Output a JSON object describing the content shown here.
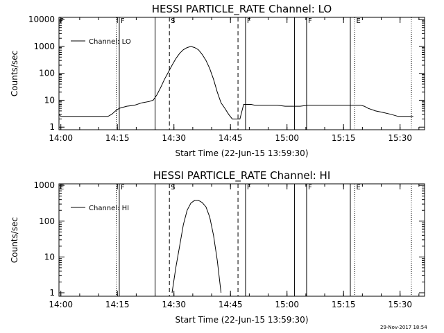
{
  "chart_data": [
    {
      "type": "line",
      "title": "HESSI PARTICLE_RATE Channel: LO",
      "xlabel": "Start Time (22-Jun-15 13:59:30)",
      "ylabel": "Counts/sec",
      "yscale": "log",
      "xlim_minutes": [
        0,
        97
      ],
      "ylim": [
        0.8,
        12000
      ],
      "x_ticks": [
        "14:00",
        "14:15",
        "14:30",
        "14:45",
        "15:00",
        "15:15",
        "15:30"
      ],
      "y_ticks": [
        {
          "value": 1,
          "label": "1"
        },
        {
          "value": 10,
          "label": "10"
        },
        {
          "value": 100,
          "label": "100"
        },
        {
          "value": 1000,
          "label": "1000"
        },
        {
          "value": 10000,
          "label": "10000"
        }
      ],
      "legend": "top-left",
      "series": [
        {
          "name": "Channel: LO",
          "x_minutes": [
            0,
            0.5,
            1,
            2,
            3,
            4,
            5,
            6,
            7,
            8,
            9,
            10,
            11,
            12,
            13,
            14,
            15,
            16,
            18,
            20,
            22,
            24,
            25,
            26,
            27,
            28,
            29,
            30,
            31,
            32,
            33,
            34,
            35,
            36,
            37,
            38,
            39,
            40,
            41,
            42,
            43,
            44,
            45,
            46,
            47,
            48,
            49,
            50,
            51,
            52,
            54,
            56,
            58,
            60,
            62,
            64,
            66,
            68,
            70,
            72,
            74,
            76,
            78,
            80,
            81,
            82,
            84,
            86,
            88,
            90,
            92,
            94
          ],
          "y": [
            3,
            2.5,
            2.5,
            2.5,
            2.5,
            2.5,
            2.5,
            2.5,
            2.5,
            2.5,
            2.5,
            2.5,
            2.5,
            2.5,
            2.5,
            3,
            4,
            5,
            6,
            6.5,
            8,
            9,
            10,
            16,
            30,
            60,
            110,
            200,
            350,
            550,
            750,
            900,
            1000,
            900,
            750,
            500,
            300,
            150,
            60,
            20,
            8,
            5,
            3,
            2,
            2,
            2,
            7,
            7,
            7,
            6.5,
            6.5,
            6.5,
            6.5,
            6,
            6,
            6,
            6.5,
            6.5,
            6.5,
            6.5,
            6.5,
            6.5,
            6.5,
            6.5,
            6,
            5,
            4,
            3.5,
            3,
            2.5,
            2.5,
            2.5
          ]
        }
      ],
      "markers": [
        {
          "x_minutes": 15.2,
          "style": "dotted",
          "label": ""
        },
        {
          "x_minutes": 16,
          "style": "solid",
          "label": "F"
        },
        {
          "x_minutes": 25.5,
          "style": "solid",
          "label": ""
        },
        {
          "x_minutes": 29.3,
          "style": "dashed",
          "label": "S"
        },
        {
          "x_minutes": 47.5,
          "style": "dashed",
          "label": ""
        },
        {
          "x_minutes": 49.5,
          "style": "solid",
          "label": "F"
        },
        {
          "x_minutes": 62.5,
          "style": "solid",
          "label": ""
        },
        {
          "x_minutes": 65.7,
          "style": "solid",
          "label": "F"
        },
        {
          "x_minutes": 77.3,
          "style": "solid",
          "label": ""
        },
        {
          "x_minutes": 78.5,
          "style": "dotted",
          "label": "E"
        },
        {
          "x_minutes": 93.5,
          "style": "dotted",
          "label": ""
        }
      ],
      "corner_label": "F"
    },
    {
      "type": "line",
      "title": "HESSI PARTICLE_RATE Channel: HI",
      "xlabel": "Start Time (22-Jun-15 13:59:30)",
      "ylabel": "Counts/sec",
      "yscale": "log",
      "xlim_minutes": [
        0,
        97
      ],
      "ylim": [
        0.8,
        1100
      ],
      "x_ticks": [
        "14:00",
        "14:15",
        "14:30",
        "14:45",
        "15:00",
        "15:15",
        "15:30"
      ],
      "y_ticks": [
        {
          "value": 1,
          "label": "1"
        },
        {
          "value": 10,
          "label": "10"
        },
        {
          "value": 100,
          "label": "100"
        },
        {
          "value": 1000,
          "label": "1000"
        }
      ],
      "legend": "top-left",
      "series": [
        {
          "name": "Channel: HI",
          "x_minutes": [
            30,
            31,
            32,
            33,
            34,
            35,
            36,
            37,
            38,
            39,
            40,
            41,
            42,
            43
          ],
          "y": [
            1,
            5,
            20,
            80,
            200,
            320,
            380,
            380,
            330,
            250,
            130,
            40,
            8,
            1
          ]
        }
      ],
      "markers": [
        {
          "x_minutes": 15.2,
          "style": "dotted",
          "label": ""
        },
        {
          "x_minutes": 16,
          "style": "solid",
          "label": "F"
        },
        {
          "x_minutes": 25.5,
          "style": "solid",
          "label": ""
        },
        {
          "x_minutes": 29.3,
          "style": "dashed",
          "label": "S"
        },
        {
          "x_minutes": 47.5,
          "style": "dashed",
          "label": ""
        },
        {
          "x_minutes": 49.5,
          "style": "solid",
          "label": "F"
        },
        {
          "x_minutes": 62.5,
          "style": "solid",
          "label": ""
        },
        {
          "x_minutes": 65.7,
          "style": "solid",
          "label": "F"
        },
        {
          "x_minutes": 77.3,
          "style": "solid",
          "label": ""
        },
        {
          "x_minutes": 78.5,
          "style": "dotted",
          "label": "E"
        },
        {
          "x_minutes": 93.5,
          "style": "dotted",
          "label": ""
        }
      ],
      "corner_label": "E"
    }
  ],
  "footer": {
    "timestamp": "29-Nov-2017 18:54"
  },
  "colors": {
    "background": "#ffffff",
    "ink": "#000000"
  }
}
